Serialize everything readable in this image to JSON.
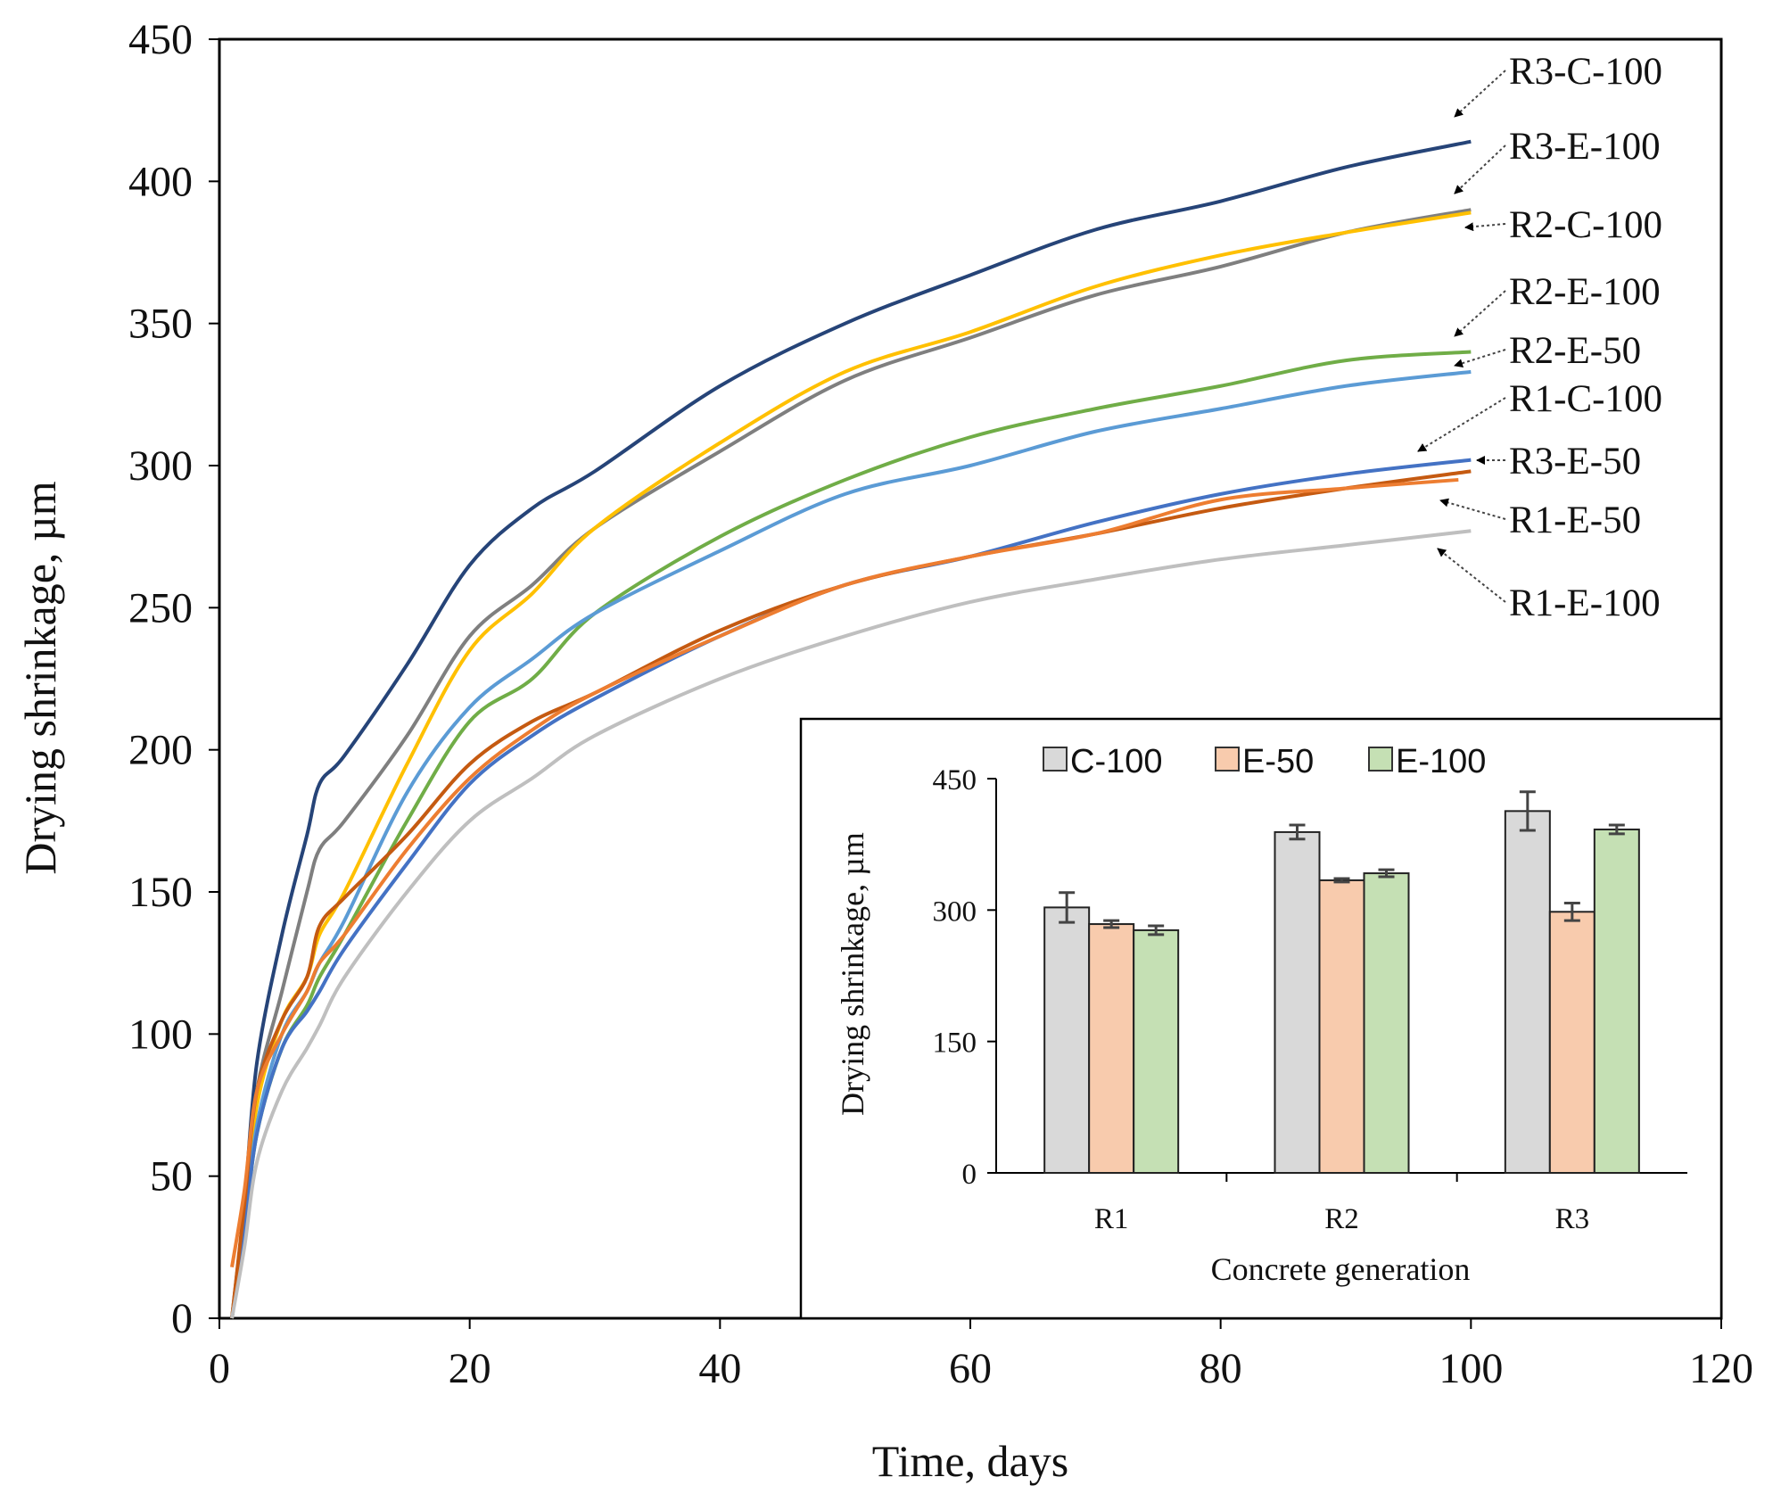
{
  "chart_data": [
    {
      "type": "line",
      "title": "",
      "xlabel": "Time, days",
      "ylabel": "Drying shrinkage, µm",
      "xlim": [
        0,
        120
      ],
      "ylim": [
        0,
        450
      ],
      "x_ticks": [
        "0",
        "20",
        "40",
        "60",
        "80",
        "100",
        "120"
      ],
      "y_ticks": [
        "0",
        "50",
        "100",
        "150",
        "200",
        "250",
        "300",
        "350",
        "400",
        "450"
      ],
      "grid": false,
      "x": [
        1,
        2,
        3,
        5,
        7,
        8,
        10,
        15,
        20,
        25,
        30,
        40,
        50,
        60,
        70,
        80,
        90,
        100
      ],
      "series": [
        {
          "name": "R3-C-100",
          "color": "#264478",
          "values": [
            0,
            40,
            90,
            135,
            170,
            188,
            198,
            230,
            265,
            285,
            298,
            328,
            350,
            367,
            383,
            393,
            405,
            414
          ]
        },
        {
          "name": "R3-E-100",
          "color": "#7f7f7f",
          "values": [
            0,
            35,
            80,
            115,
            150,
            165,
            175,
            205,
            240,
            258,
            278,
            305,
            330,
            345,
            360,
            370,
            382,
            390
          ]
        },
        {
          "name": "R2-C-100",
          "color": "#ffc000",
          "values": [
            0,
            35,
            75,
            105,
            120,
            135,
            150,
            195,
            235,
            255,
            278,
            308,
            333,
            347,
            363,
            374,
            382,
            389
          ]
        },
        {
          "name": "R2-E-100",
          "color": "#70ad47",
          "values": [
            0,
            30,
            65,
            95,
            110,
            120,
            135,
            175,
            210,
            225,
            248,
            275,
            295,
            310,
            320,
            328,
            337,
            340
          ]
        },
        {
          "name": "R2-E-50",
          "color": "#5b9bd5",
          "values": [
            0,
            30,
            68,
            100,
            115,
            125,
            140,
            185,
            215,
            232,
            248,
            270,
            290,
            300,
            312,
            320,
            328,
            333
          ]
        },
        {
          "name": "R1-C-100",
          "color": "#4472c4",
          "values": [
            0,
            30,
            65,
            95,
            108,
            115,
            130,
            160,
            188,
            205,
            218,
            240,
            258,
            268,
            280,
            290,
            297,
            302
          ]
        },
        {
          "name": "R3-E-50",
          "color": "#c55a11",
          "values": [
            0,
            40,
            80,
            105,
            120,
            138,
            148,
            170,
            195,
            210,
            220,
            242,
            258,
            268,
            276,
            285,
            292,
            298
          ]
        },
        {
          "name": "R1-E-50",
          "color": "#ed7d31",
          "values": [
            18,
            45,
            80,
            100,
            115,
            125,
            135,
            165,
            190,
            207,
            220,
            240,
            258,
            268,
            276,
            288,
            292,
            295
          ]
        },
        {
          "name": "R1-E-100",
          "color": "#bfbfbf",
          "values": [
            0,
            25,
            55,
            80,
            95,
            103,
            120,
            150,
            175,
            190,
            205,
            225,
            240,
            252,
            260,
            267,
            272,
            277
          ]
        }
      ]
    },
    {
      "type": "bar",
      "title": "",
      "xlabel": "Concrete generation",
      "ylabel": "Drying shrinkage, µm",
      "ylim": [
        0,
        450
      ],
      "y_ticks": [
        "0",
        "150",
        "300",
        "450"
      ],
      "categories": [
        "R1",
        "R2",
        "R3"
      ],
      "legend_position": "top",
      "series": [
        {
          "name": "C-100",
          "color": "#d9d9d9",
          "values": [
            303,
            389,
            413
          ],
          "errors": [
            17,
            8,
            22
          ]
        },
        {
          "name": "E-50",
          "color": "#f8cbad",
          "values": [
            284,
            334,
            298
          ],
          "errors": [
            4,
            2,
            10
          ]
        },
        {
          "name": "E-100",
          "color": "#c5e0b4",
          "values": [
            277,
            342,
            392
          ],
          "errors": [
            5,
            4,
            5
          ]
        }
      ]
    }
  ]
}
